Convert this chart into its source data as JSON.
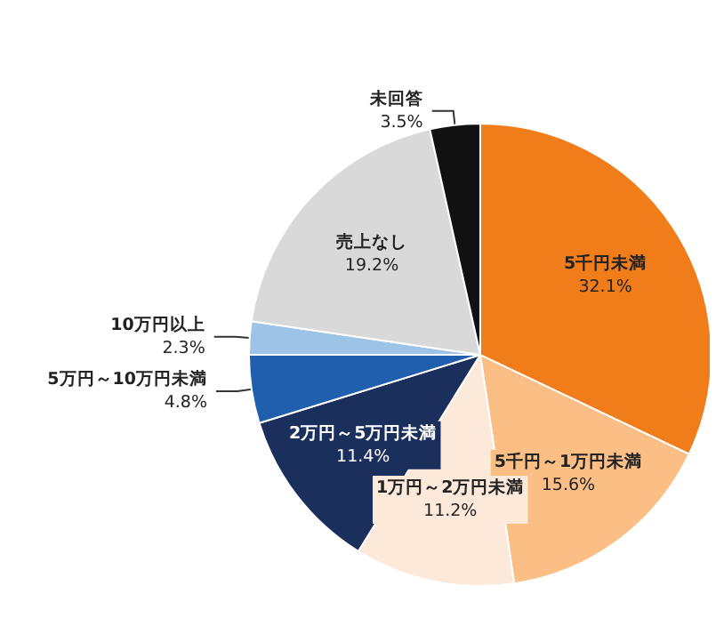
{
  "chart_data": {
    "type": "pie",
    "categories": [
      "5千円未満",
      "5千円～1万円未満",
      "1万円～2万円未満",
      "2万円～5万円未満",
      "5万円～10万円未満",
      "10万円以上",
      "売上なし",
      "未回答"
    ],
    "values": [
      32.1,
      15.6,
      11.2,
      11.4,
      4.8,
      2.3,
      19.2,
      3.5
    ],
    "colors": [
      "#f07c1a",
      "#fbbf86",
      "#fde9d9",
      "#1b2f5c",
      "#1f5fae",
      "#9dc3e6",
      "#d9d9d9",
      "#111111"
    ],
    "value_labels": [
      "32.1%",
      "15.6%",
      "11.2%",
      "11.4%",
      "4.8%",
      "2.3%",
      "19.2%",
      "3.5%"
    ],
    "legend": false
  }
}
